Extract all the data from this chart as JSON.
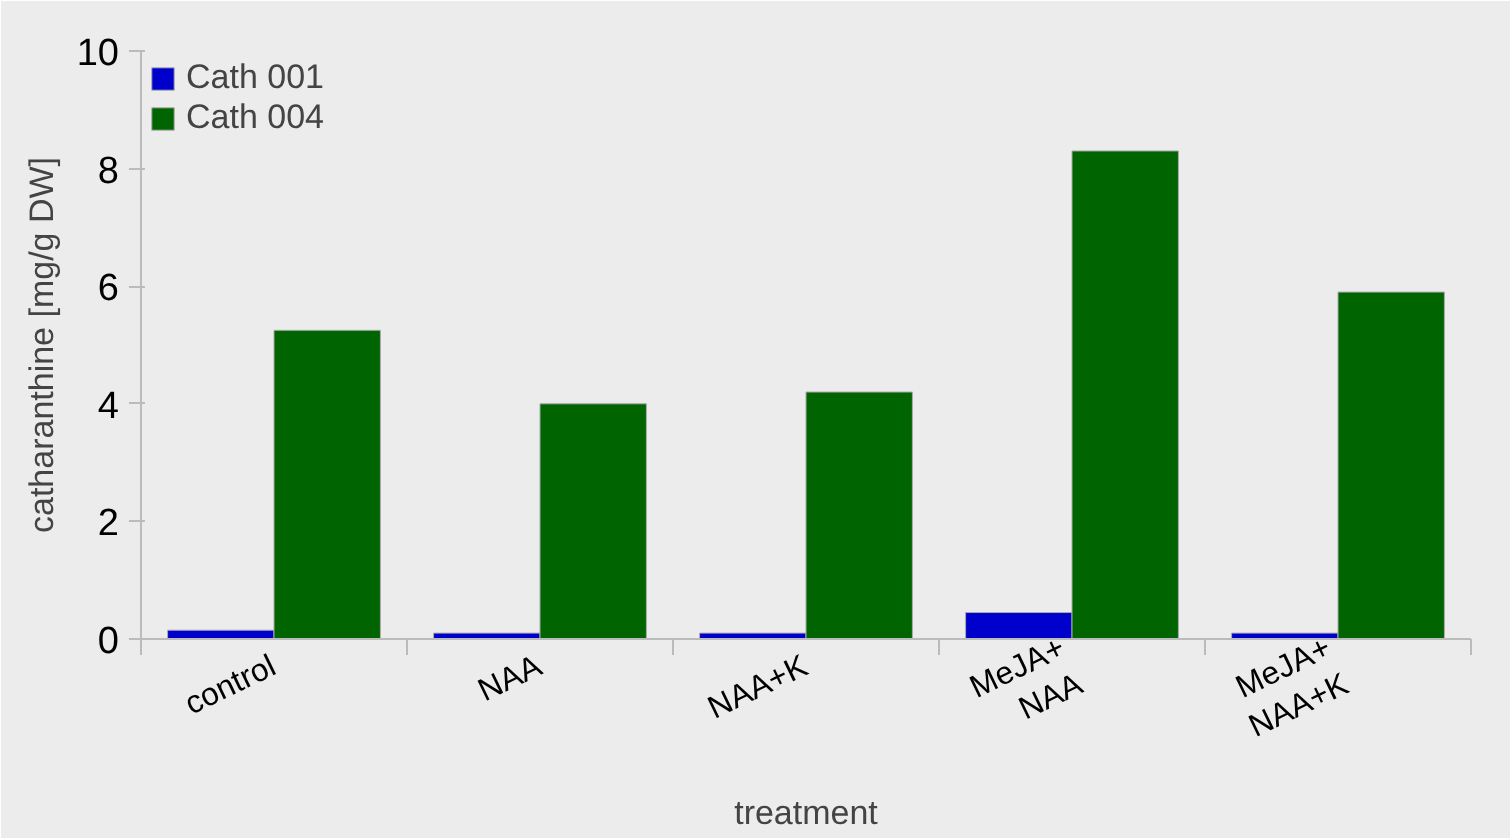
{
  "chart_data": {
    "type": "bar",
    "xlabel": "treatment",
    "ylabel": "catharanthine [mg/g DW]",
    "categories": [
      "control",
      "NAA",
      "NAA+K",
      "MeJA+\nNAA",
      "MeJA+\nNAA+K"
    ],
    "series": [
      {
        "name": "Cath 001",
        "color": "#0000cc",
        "values": [
          0.15,
          0.1,
          0.1,
          0.45,
          0.1
        ]
      },
      {
        "name": "Cath 004",
        "color": "#006400",
        "values": [
          5.25,
          4.0,
          4.2,
          8.3,
          5.9
        ]
      }
    ],
    "ylim": [
      0,
      10
    ],
    "yticks": [
      0,
      2,
      4,
      6,
      8,
      10
    ],
    "grid": false,
    "legend": "top left"
  }
}
